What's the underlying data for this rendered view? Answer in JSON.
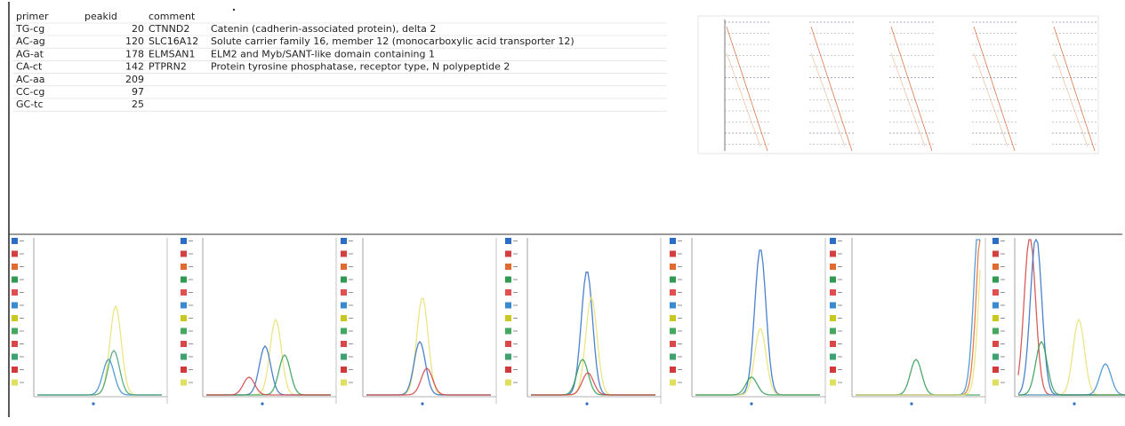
{
  "table": {
    "header": [
      "primer",
      "peakid",
      "comment"
    ],
    "rows": [
      [
        "TG-cg",
        20,
        "CTNND2",
        "Catenin (cadherin-associated protein), delta 2"
      ],
      [
        "AC-ag",
        120,
        "SLC16A12",
        "Solute carrier family 16, member 12 (monocarboxylic acid transporter 12)"
      ],
      [
        "AG-at",
        178,
        "ELMSAN1",
        "ELM2 and Myb/SANT-like domain containing 1"
      ],
      [
        "CA-ct",
        142,
        "PTPRN2",
        "Protein tyrosine phosphatase, receptor type, N polypeptide 2"
      ],
      [
        "AC-aa",
        209
      ],
      [
        "CC-cg",
        97
      ],
      [
        "GC-tc",
        25
      ]
    ]
  }
}
